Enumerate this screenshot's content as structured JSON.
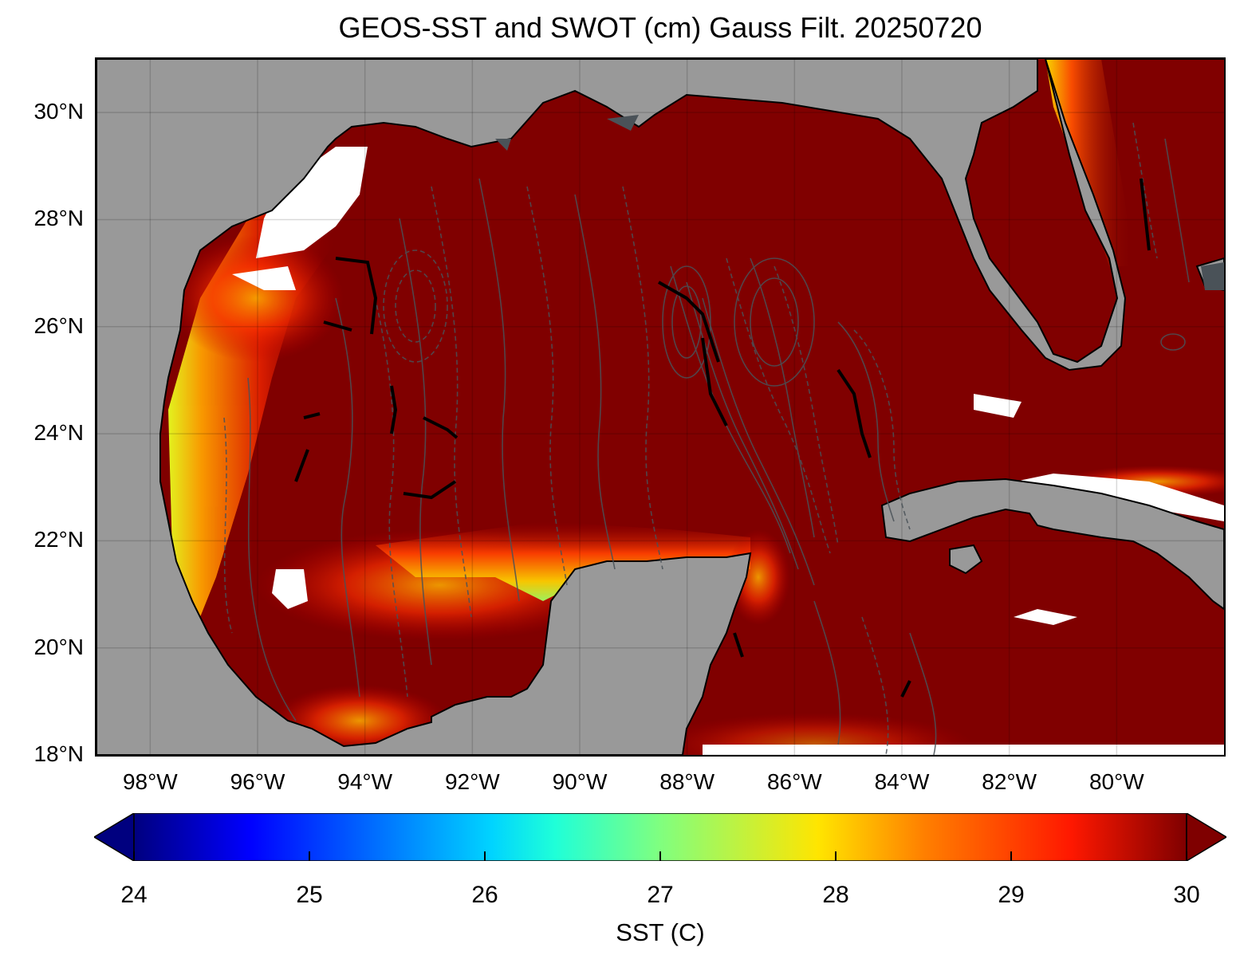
{
  "title": "GEOS-SST  and SWOT (cm) Gauss Filt. 20250720",
  "map": {
    "lon_range": [
      -99.0,
      -78.0
    ],
    "lat_range": [
      18.0,
      31.0
    ],
    "land_color": "#999999",
    "ocean_color": "#800000",
    "grid": true,
    "lat_ticks": [
      {
        "value": 30,
        "label": "30°N"
      },
      {
        "value": 28,
        "label": "28°N"
      },
      {
        "value": 26,
        "label": "26°N"
      },
      {
        "value": 24,
        "label": "24°N"
      },
      {
        "value": 22,
        "label": "22°N"
      },
      {
        "value": 20,
        "label": "20°N"
      },
      {
        "value": 18,
        "label": "18°N"
      }
    ],
    "lon_ticks": [
      {
        "value": -98,
        "label": "98°W"
      },
      {
        "value": -96,
        "label": "96°W"
      },
      {
        "value": -94,
        "label": "94°W"
      },
      {
        "value": -92,
        "label": "92°W"
      },
      {
        "value": -90,
        "label": "90°W"
      },
      {
        "value": -88,
        "label": "88°W"
      },
      {
        "value": -86,
        "label": "86°W"
      },
      {
        "value": -84,
        "label": "84°W"
      },
      {
        "value": -82,
        "label": "82°W"
      },
      {
        "value": -80,
        "label": "80°W"
      }
    ]
  },
  "colorbar": {
    "label": "SST (C)",
    "range": [
      24,
      30
    ],
    "extend": "both",
    "colormap": "jet",
    "ticks": [
      {
        "value": 24,
        "label": "24"
      },
      {
        "value": 25,
        "label": "25"
      },
      {
        "value": 26,
        "label": "26"
      },
      {
        "value": 27,
        "label": "27"
      },
      {
        "value": 28,
        "label": "28"
      },
      {
        "value": 29,
        "label": "29"
      },
      {
        "value": 30,
        "label": "30"
      }
    ]
  }
}
